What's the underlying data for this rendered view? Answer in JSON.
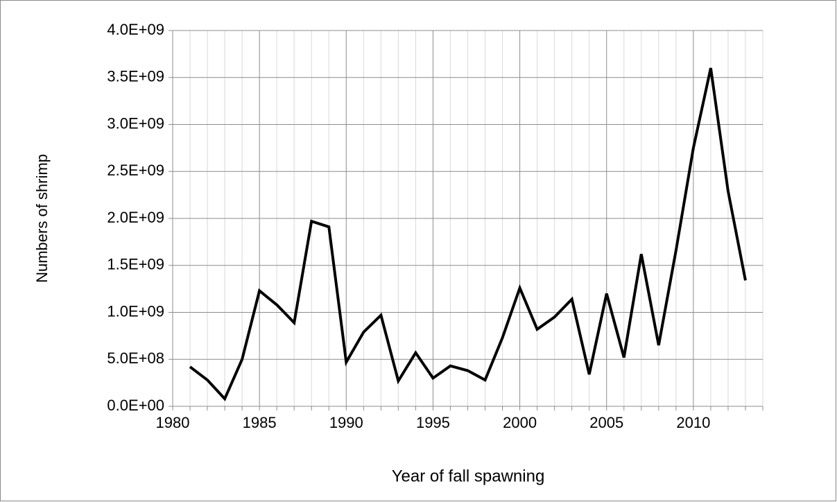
{
  "chart_data": {
    "type": "line",
    "xlabel": "Year of fall spawning",
    "ylabel": "Numbers of shrimp",
    "x": [
      1981,
      1982,
      1983,
      1984,
      1985,
      1986,
      1987,
      1988,
      1989,
      1990,
      1991,
      1992,
      1993,
      1994,
      1995,
      1996,
      1997,
      1998,
      1999,
      2000,
      2001,
      2002,
      2003,
      2004,
      2005,
      2006,
      2007,
      2008,
      2009,
      2010,
      2011,
      2012,
      2013
    ],
    "series": [
      {
        "name": null,
        "color": "#000000",
        "values": [
          420000000,
          280000000,
          80000000,
          500000000,
          1230000000,
          1080000000,
          890000000,
          1970000000,
          1910000000,
          470000000,
          790000000,
          970000000,
          270000000,
          570000000,
          300000000,
          430000000,
          380000000,
          280000000,
          730000000,
          1260000000,
          820000000,
          950000000,
          1140000000,
          340000000,
          1200000000,
          520000000,
          1620000000,
          650000000,
          1660000000,
          2750000000,
          3600000000,
          2290000000,
          1340000000
        ]
      }
    ],
    "xlim": [
      1980,
      2014
    ],
    "xticks": [
      1980,
      1985,
      1990,
      1995,
      2000,
      2005,
      2010
    ],
    "xminorticks": [
      1981,
      1982,
      1983,
      1984,
      1986,
      1987,
      1988,
      1989,
      1991,
      1992,
      1993,
      1994,
      1996,
      1997,
      1998,
      1999,
      2001,
      2002,
      2003,
      2004,
      2006,
      2007,
      2008,
      2009,
      2011,
      2012,
      2013,
      2014
    ],
    "ylim": [
      0,
      4000000000
    ],
    "yticks": [
      {
        "value": 0,
        "label": "0.0E+00"
      },
      {
        "value": 500000000,
        "label": "5.0E+08"
      },
      {
        "value": 1000000000,
        "label": "1.0E+09"
      },
      {
        "value": 1500000000,
        "label": "1.5E+09"
      },
      {
        "value": 2000000000,
        "label": "2.0E+09"
      },
      {
        "value": 2500000000,
        "label": "2.5E+09"
      },
      {
        "value": 3000000000,
        "label": "3.0E+09"
      },
      {
        "value": 3500000000,
        "label": "3.5E+09"
      },
      {
        "value": 4000000000,
        "label": "4.0E+09"
      }
    ],
    "grid": true
  }
}
